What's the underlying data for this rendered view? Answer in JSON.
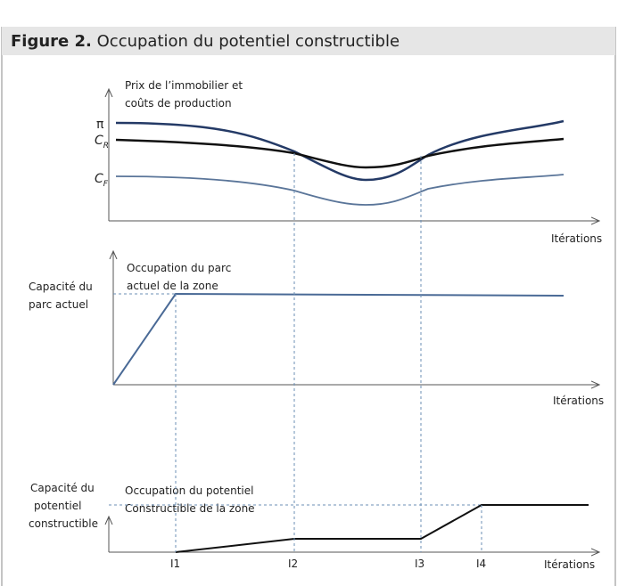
{
  "header": {
    "label": "Figure 2.",
    "title": "Occupation du potentiel constructible"
  },
  "panels": [
    {
      "axis_title": [
        "Prix de l’immobilier et",
        "coûts de production"
      ],
      "y_labels": [
        {
          "symbol": "π"
        },
        {
          "symbol": "C",
          "subscript": "R"
        },
        {
          "symbol": "C",
          "subscript": "F"
        }
      ],
      "x_label": "Itérations"
    },
    {
      "axis_title": [
        "Occupation du parc",
        "actuel de la zone"
      ],
      "y_label": [
        "Capacité du",
        "parc actuel"
      ],
      "x_label": "Itérations"
    },
    {
      "axis_title": [
        "Occupation du potentiel",
        "Constructible de la zone"
      ],
      "y_label": [
        "Capacité du",
        "potentiel",
        "constructible"
      ],
      "x_ticks": [
        "I1",
        "I2",
        "I3",
        "I4"
      ],
      "x_label": "Itérations"
    }
  ]
}
